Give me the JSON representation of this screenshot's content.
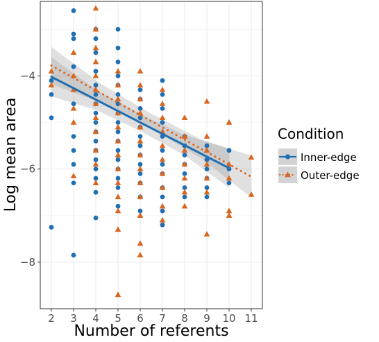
{
  "chart_data": {
    "type": "scatter",
    "title": "",
    "xlabel": "Number of referents",
    "ylabel": "Log mean area",
    "xlim": [
      1.5,
      11.5
    ],
    "ylim": [
      -9.0,
      -2.4
    ],
    "x_ticks": [
      2,
      3,
      4,
      5,
      6,
      7,
      8,
      9,
      10,
      11
    ],
    "y_ticks": [
      -8,
      -6,
      -4
    ],
    "grid": true,
    "legend_title": "Condition",
    "legend_position": "right",
    "series": [
      {
        "name": "Inner-edge",
        "marker": "circle",
        "color": "#1f6fb2",
        "line_style": "solid",
        "fit": {
          "intercept": -4.02,
          "slope": -0.245,
          "ci_half_width": [
            0.42,
            0.22,
            0.18,
            0.22,
            0.42
          ]
        },
        "points": [
          [
            2,
            -4.1
          ],
          [
            2,
            -4.4
          ],
          [
            2,
            -4.9
          ],
          [
            2,
            -7.25
          ],
          [
            3,
            -2.6
          ],
          [
            3,
            -3.1
          ],
          [
            3,
            -3.2
          ],
          [
            3,
            -3.8
          ],
          [
            3,
            -4.6
          ],
          [
            3,
            -5.3
          ],
          [
            3,
            -5.6
          ],
          [
            3,
            -5.9
          ],
          [
            3,
            -6.3
          ],
          [
            3,
            -7.85
          ],
          [
            4,
            -3.0
          ],
          [
            4,
            -3.2
          ],
          [
            4,
            -3.5
          ],
          [
            4,
            -3.9
          ],
          [
            4,
            -4.2
          ],
          [
            4,
            -4.4
          ],
          [
            4,
            -4.6
          ],
          [
            4,
            -4.8
          ],
          [
            4,
            -5.0
          ],
          [
            4,
            -5.2
          ],
          [
            4,
            -5.4
          ],
          [
            4,
            -5.6
          ],
          [
            4,
            -5.8
          ],
          [
            4,
            -6.0
          ],
          [
            4,
            -6.2
          ],
          [
            4,
            -6.5
          ],
          [
            4,
            -7.05
          ],
          [
            5,
            -3.0
          ],
          [
            5,
            -3.4
          ],
          [
            5,
            -3.7
          ],
          [
            5,
            -4.0
          ],
          [
            5,
            -4.2
          ],
          [
            5,
            -4.4
          ],
          [
            5,
            -4.6
          ],
          [
            5,
            -4.8
          ],
          [
            5,
            -5.0
          ],
          [
            5,
            -5.2
          ],
          [
            5,
            -5.4
          ],
          [
            5,
            -5.6
          ],
          [
            5,
            -5.8
          ],
          [
            5,
            -6.0
          ],
          [
            5,
            -6.2
          ],
          [
            5,
            -6.4
          ],
          [
            5,
            -6.8
          ],
          [
            6,
            -4.3
          ],
          [
            6,
            -4.5
          ],
          [
            6,
            -4.7
          ],
          [
            6,
            -4.9
          ],
          [
            6,
            -5.1
          ],
          [
            6,
            -5.3
          ],
          [
            6,
            -5.5
          ],
          [
            6,
            -5.7
          ],
          [
            6,
            -5.9
          ],
          [
            6,
            -6.1
          ],
          [
            6,
            -6.3
          ],
          [
            6,
            -6.6
          ],
          [
            6,
            -6.9
          ],
          [
            7,
            -4.1
          ],
          [
            7,
            -4.4
          ],
          [
            7,
            -4.7
          ],
          [
            7,
            -5.0
          ],
          [
            7,
            -5.3
          ],
          [
            7,
            -5.6
          ],
          [
            7,
            -5.9
          ],
          [
            7,
            -6.1
          ],
          [
            7,
            -6.4
          ],
          [
            7,
            -6.6
          ],
          [
            7,
            -6.9
          ],
          [
            7,
            -7.2
          ],
          [
            8,
            -5.3
          ],
          [
            8,
            -5.5
          ],
          [
            8,
            -5.7
          ],
          [
            8,
            -5.9
          ],
          [
            8,
            -6.1
          ],
          [
            8,
            -6.4
          ],
          [
            8,
            -6.6
          ],
          [
            9,
            -5.5
          ],
          [
            9,
            -5.8
          ],
          [
            9,
            -6.0
          ],
          [
            9,
            -6.2
          ],
          [
            9,
            -6.4
          ],
          [
            9,
            -6.6
          ],
          [
            10,
            -5.6
          ],
          [
            10,
            -6.0
          ],
          [
            10,
            -6.3
          ]
        ]
      },
      {
        "name": "Outer-edge",
        "marker": "triangle",
        "color": "#d9661f",
        "line_style": "dotted",
        "fit": {
          "intercept": -3.78,
          "slope": -0.265,
          "ci_half_width": [
            0.4,
            0.2,
            0.16,
            0.2,
            0.45
          ]
        },
        "points": [
          [
            2,
            -3.9
          ],
          [
            2,
            -4.2
          ],
          [
            3,
            -3.5
          ],
          [
            3,
            -4.0
          ],
          [
            3,
            -4.3
          ],
          [
            3,
            -4.7
          ],
          [
            3,
            -5.0
          ],
          [
            3,
            -6.15
          ],
          [
            4,
            -2.55
          ],
          [
            4,
            -3.0
          ],
          [
            4,
            -3.4
          ],
          [
            4,
            -3.7
          ],
          [
            4,
            -4.0
          ],
          [
            4,
            -4.3
          ],
          [
            4,
            -4.6
          ],
          [
            4,
            -4.9
          ],
          [
            4,
            -5.2
          ],
          [
            4,
            -5.6
          ],
          [
            4,
            -5.9
          ],
          [
            4,
            -6.3
          ],
          [
            5,
            -3.9
          ],
          [
            5,
            -4.2
          ],
          [
            5,
            -4.5
          ],
          [
            5,
            -4.8
          ],
          [
            5,
            -5.1
          ],
          [
            5,
            -5.4
          ],
          [
            5,
            -5.7
          ],
          [
            5,
            -6.0
          ],
          [
            5,
            -6.3
          ],
          [
            5,
            -6.6
          ],
          [
            5,
            -6.9
          ],
          [
            5,
            -7.3
          ],
          [
            5,
            -8.7
          ],
          [
            6,
            -3.9
          ],
          [
            6,
            -4.2
          ],
          [
            6,
            -4.5
          ],
          [
            6,
            -4.8
          ],
          [
            6,
            -5.1
          ],
          [
            6,
            -5.4
          ],
          [
            6,
            -5.7
          ],
          [
            6,
            -6.0
          ],
          [
            6,
            -6.3
          ],
          [
            6,
            -6.6
          ],
          [
            6,
            -7.0
          ],
          [
            6,
            -7.6
          ],
          [
            6,
            -7.85
          ],
          [
            7,
            -4.3
          ],
          [
            7,
            -4.6
          ],
          [
            7,
            -4.9
          ],
          [
            7,
            -5.2
          ],
          [
            7,
            -5.5
          ],
          [
            7,
            -5.8
          ],
          [
            7,
            -6.1
          ],
          [
            7,
            -6.4
          ],
          [
            7,
            -6.8
          ],
          [
            7,
            -7.1
          ],
          [
            8,
            -4.9
          ],
          [
            8,
            -5.3
          ],
          [
            8,
            -5.6
          ],
          [
            8,
            -5.9
          ],
          [
            8,
            -6.2
          ],
          [
            8,
            -6.5
          ],
          [
            8,
            -6.8
          ],
          [
            9,
            -4.55
          ],
          [
            9,
            -5.3
          ],
          [
            9,
            -5.6
          ],
          [
            9,
            -5.9
          ],
          [
            9,
            -6.2
          ],
          [
            9,
            -6.5
          ],
          [
            9,
            -7.4
          ],
          [
            10,
            -5.9
          ],
          [
            10,
            -6.2
          ],
          [
            10,
            -6.9
          ],
          [
            10,
            -7.0
          ],
          [
            10,
            -5.0
          ],
          [
            11,
            -5.75
          ],
          [
            11,
            -6.55
          ]
        ]
      }
    ]
  }
}
